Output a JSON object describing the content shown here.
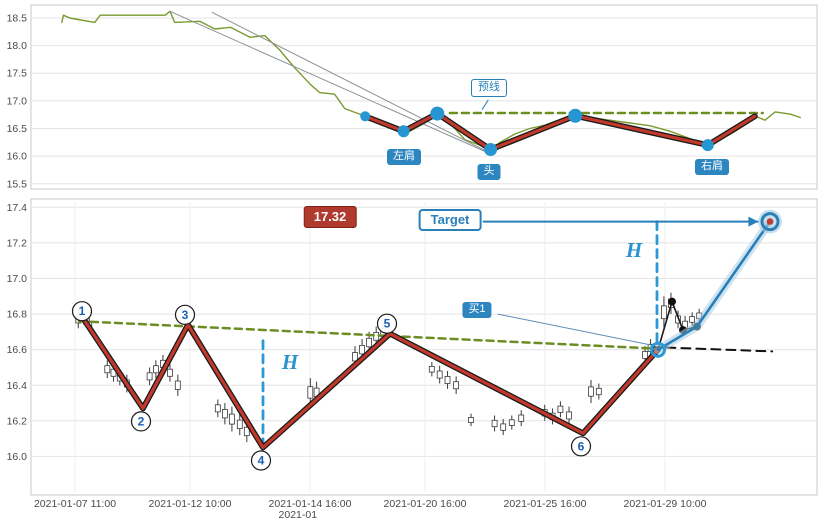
{
  "ui": {
    "badges": {
      "neckline_label": "预线",
      "left_shoulder": "左肩",
      "head": "头",
      "right_shoulder": "右肩",
      "price_target_value": "17.32",
      "target_label": "Target",
      "buy_label": "买1",
      "h_label": "H"
    }
  },
  "chart_data": [
    {
      "type": "line",
      "name": "top-panel-head-and-shoulders-overview",
      "title": "",
      "xlabel": "",
      "ylabel": "",
      "ylim": [
        15.46,
        18.68
      ],
      "yticks": [
        18.5,
        18.0,
        17.5,
        17.0,
        16.5,
        16.0,
        15.5
      ],
      "grid": "horizontal",
      "legend": "none",
      "series": [
        {
          "name": "price",
          "kind": "line",
          "color": "#7a9a2e",
          "width": 1.4,
          "points": [
            [
              0.038,
              18.42
            ],
            [
              0.04,
              18.55
            ],
            [
              0.048,
              18.5
            ],
            [
              0.08,
              18.42
            ],
            [
              0.087,
              18.55
            ],
            [
              0.17,
              18.55
            ],
            [
              0.176,
              18.62
            ],
            [
              0.182,
              18.42
            ],
            [
              0.214,
              18.44
            ],
            [
              0.233,
              18.3
            ],
            [
              0.253,
              18.33
            ],
            [
              0.278,
              18.15
            ],
            [
              0.297,
              18.18
            ],
            [
              0.316,
              17.92
            ],
            [
              0.335,
              17.6
            ],
            [
              0.355,
              17.3
            ],
            [
              0.367,
              17.15
            ],
            [
              0.386,
              17.12
            ],
            [
              0.399,
              16.86
            ],
            [
              0.418,
              16.76
            ],
            [
              0.431,
              16.7
            ],
            [
              0.45,
              16.6
            ],
            [
              0.469,
              16.5
            ],
            [
              0.482,
              16.45
            ],
            [
              0.501,
              16.6
            ],
            [
              0.517,
              16.76
            ],
            [
              0.533,
              16.6
            ],
            [
              0.552,
              16.3
            ],
            [
              0.571,
              16.2
            ],
            [
              0.585,
              16.1
            ],
            [
              0.597,
              16.25
            ],
            [
              0.616,
              16.4
            ],
            [
              0.635,
              16.5
            ],
            [
              0.654,
              16.56
            ],
            [
              0.673,
              16.66
            ],
            [
              0.693,
              16.73
            ],
            [
              0.712,
              16.7
            ],
            [
              0.737,
              16.65
            ],
            [
              0.763,
              16.6
            ],
            [
              0.788,
              16.55
            ],
            [
              0.814,
              16.45
            ],
            [
              0.833,
              16.35
            ],
            [
              0.852,
              16.25
            ],
            [
              0.862,
              16.2
            ],
            [
              0.878,
              16.3
            ],
            [
              0.897,
              16.45
            ],
            [
              0.913,
              16.6
            ],
            [
              0.922,
              16.73
            ],
            [
              0.935,
              16.65
            ],
            [
              0.948,
              16.8
            ],
            [
              0.967,
              16.76
            ],
            [
              0.98,
              16.7
            ]
          ]
        },
        {
          "name": "trendline-upper",
          "kind": "line",
          "color": "#8a9096",
          "width": 1,
          "points": [
            [
              0.176,
              18.62
            ],
            [
              0.588,
              16.02
            ]
          ]
        },
        {
          "name": "trendline-lower",
          "kind": "line",
          "color": "#8a9096",
          "width": 1,
          "points": [
            [
              0.23,
              18.6
            ],
            [
              0.578,
              16.1
            ]
          ]
        },
        {
          "name": "neckline",
          "kind": "dashed",
          "color": "#6b8e23",
          "width": 2.5,
          "dash": "7 5",
          "points": [
            [
              0.533,
              16.78
            ],
            [
              0.932,
              16.78
            ]
          ]
        },
        {
          "name": "head-shoulders-pattern",
          "kind": "pattern",
          "color": "#c0392b",
          "outline": "#1a1a1a",
          "width": 3.2,
          "points": [
            [
              0.425,
              16.72
            ],
            [
              0.474,
              16.45
            ],
            [
              0.517,
              16.77
            ],
            [
              0.585,
              16.12
            ],
            [
              0.693,
              16.73
            ],
            [
              0.862,
              16.2
            ],
            [
              0.922,
              16.72
            ]
          ]
        }
      ],
      "markers": [
        {
          "type": "dot",
          "f": 0.425,
          "v": 16.72,
          "r": 5,
          "color": "#2596d1"
        },
        {
          "type": "dot",
          "f": 0.474,
          "v": 16.45,
          "r": 6,
          "color": "#2596d1"
        },
        {
          "type": "dot",
          "f": 0.517,
          "v": 16.77,
          "r": 7,
          "color": "#2596d1"
        },
        {
          "type": "dot",
          "f": 0.585,
          "v": 16.12,
          "r": 6.5,
          "color": "#2596d1"
        },
        {
          "type": "dot",
          "f": 0.693,
          "v": 16.73,
          "r": 7,
          "color": "#2596d1"
        },
        {
          "type": "dot",
          "f": 0.862,
          "v": 16.2,
          "r": 6,
          "color": "#2596d1"
        }
      ],
      "connectors": [
        {
          "name": "neckline-pointer",
          "from": [
            0.582,
            17.02
          ],
          "to": [
            0.574,
            16.84
          ],
          "color": "#2980b9",
          "width": 1
        }
      ]
    },
    {
      "type": "line",
      "name": "bottom-panel-pattern-target",
      "title": "",
      "xlabel": "",
      "ylabel": "",
      "ylim": [
        15.8,
        17.43
      ],
      "yticks": [
        17.4,
        17.2,
        17.0,
        16.8,
        16.6,
        16.4,
        16.2,
        16.0
      ],
      "grid": "both",
      "legend": "none",
      "target_price": 17.32,
      "xticks": [
        {
          "f": 0.0548,
          "label": "2021-01-07 11:00"
        },
        {
          "f": 0.2015,
          "label": "2021-01-12 10:00"
        },
        {
          "f": 0.3546,
          "label": "2021-01-14 16:00"
        },
        {
          "f": 0.5013,
          "label": "2021-01-20 16:00"
        },
        {
          "f": 0.6543,
          "label": "2021-01-25 16:00"
        },
        {
          "f": 0.8074,
          "label": "2021-01-29 10:00"
        }
      ],
      "extra_tick": {
        "f": 0.339,
        "label": "2021-01"
      },
      "candles": [
        [
          0.059,
          16.82,
          16.72
        ],
        [
          0.066,
          16.8,
          16.74
        ],
        [
          0.073,
          16.78,
          16.7
        ],
        [
          0.096,
          16.54,
          16.44
        ],
        [
          0.104,
          16.52,
          16.42
        ],
        [
          0.112,
          16.48,
          16.4
        ],
        [
          0.121,
          16.46,
          16.36
        ],
        [
          0.15,
          16.5,
          16.4
        ],
        [
          0.158,
          16.54,
          16.44
        ],
        [
          0.167,
          16.57,
          16.47
        ],
        [
          0.176,
          16.52,
          16.42
        ],
        [
          0.186,
          16.46,
          16.34
        ],
        [
          0.237,
          16.32,
          16.22
        ],
        [
          0.246,
          16.3,
          16.18
        ],
        [
          0.255,
          16.28,
          16.14
        ],
        [
          0.265,
          16.24,
          16.12
        ],
        [
          0.274,
          16.2,
          16.08
        ],
        [
          0.355,
          16.44,
          16.28
        ],
        [
          0.363,
          16.42,
          16.3
        ],
        [
          0.412,
          16.62,
          16.5
        ],
        [
          0.421,
          16.66,
          16.54
        ],
        [
          0.43,
          16.7,
          16.58
        ],
        [
          0.439,
          16.73,
          16.62
        ],
        [
          0.448,
          16.75,
          16.64
        ],
        [
          0.51,
          16.53,
          16.45
        ],
        [
          0.52,
          16.51,
          16.41
        ],
        [
          0.53,
          16.48,
          16.38
        ],
        [
          0.541,
          16.45,
          16.35
        ],
        [
          0.56,
          16.24,
          16.17
        ],
        [
          0.59,
          16.23,
          16.14
        ],
        [
          0.601,
          16.21,
          16.12
        ],
        [
          0.612,
          16.23,
          16.15
        ],
        [
          0.624,
          16.26,
          16.17
        ],
        [
          0.654,
          16.29,
          16.2
        ],
        [
          0.664,
          16.27,
          16.18
        ],
        [
          0.674,
          16.31,
          16.22
        ],
        [
          0.685,
          16.28,
          16.18
        ],
        [
          0.713,
          16.43,
          16.3
        ],
        [
          0.723,
          16.41,
          16.32
        ],
        [
          0.782,
          16.62,
          16.52
        ],
        [
          0.789,
          16.66,
          16.56
        ],
        [
          0.806,
          16.9,
          16.72
        ],
        [
          0.815,
          16.92,
          16.8
        ],
        [
          0.824,
          16.82,
          16.72
        ],
        [
          0.833,
          16.79,
          16.69
        ],
        [
          0.842,
          16.81,
          16.73
        ],
        [
          0.851,
          16.83,
          16.75
        ]
      ],
      "series": [
        {
          "name": "neckline-extended",
          "kind": "dashed",
          "color": "#6b8e23",
          "width": 2.5,
          "dash": "7 5",
          "points": [
            [
              0.06,
              16.76
            ],
            [
              0.801,
              16.605
            ]
          ]
        },
        {
          "name": "flat-dashed-black",
          "kind": "dashed",
          "color": "#111111",
          "width": 2,
          "dash": "9 6",
          "points": [
            [
              0.79,
              16.615
            ],
            [
              0.944,
              16.59
            ]
          ]
        },
        {
          "name": "h-measure-left",
          "kind": "dashed",
          "color": "#2b99d6",
          "width": 2.8,
          "dash": "8 6",
          "points": [
            [
              0.2946,
              16.65
            ],
            [
              0.2946,
              16.06
            ]
          ]
        },
        {
          "name": "h-measure-right",
          "kind": "dashed",
          "color": "#2b99d6",
          "width": 2.8,
          "dash": "8 6",
          "points": [
            [
              0.7972,
              17.32
            ],
            [
              0.7972,
              16.64
            ]
          ]
        },
        {
          "name": "zigzag-pattern",
          "kind": "pattern",
          "color": "#c0392b",
          "outline": "#1a1a1a",
          "width": 3.2,
          "points": [
            [
              0.0676,
              16.76
            ],
            [
              0.1416,
              16.27
            ],
            [
              0.199,
              16.74
            ],
            [
              0.2946,
              16.05
            ],
            [
              0.4566,
              16.69
            ],
            [
              0.7028,
              16.13
            ],
            [
              0.7985,
              16.6
            ]
          ]
        },
        {
          "name": "pullback-black",
          "kind": "line",
          "color": "#1a1a1a",
          "width": 1.6,
          "dots": [
            1,
            2,
            3
          ],
          "dot_r": 4,
          "dot_color": "#111111",
          "points": [
            [
              0.7985,
              16.6
            ],
            [
              0.8163,
              16.87
            ],
            [
              0.8303,
              16.71
            ],
            [
              0.8482,
              16.73
            ]
          ]
        },
        {
          "name": "breakout-to-target",
          "kind": "line",
          "color": "#2980b9",
          "width": 2.6,
          "glow": "#a9cce3",
          "points": [
            [
              0.7985,
              16.6
            ],
            [
              0.8482,
              16.73
            ],
            [
              0.9413,
              17.32
            ]
          ]
        }
      ],
      "markers": [
        {
          "type": "ring",
          "f": 0.7985,
          "v": 16.6,
          "r": 6.5,
          "color": "#2b99d6"
        },
        {
          "type": "target",
          "f": 0.9413,
          "v": 17.32,
          "r": 8
        }
      ],
      "point_labels": [
        {
          "text": "1",
          "f": 0.0676,
          "v": 16.76,
          "dir": "up"
        },
        {
          "text": "2",
          "f": 0.1416,
          "v": 16.27,
          "dir": "down"
        },
        {
          "text": "3",
          "f": 0.199,
          "v": 16.74,
          "dir": "up"
        },
        {
          "text": "4",
          "f": 0.2946,
          "v": 16.05,
          "dir": "down"
        },
        {
          "text": "5",
          "f": 0.4566,
          "v": 16.69,
          "dir": "up"
        },
        {
          "text": "6",
          "f": 0.7028,
          "v": 16.13,
          "dir": "down"
        }
      ],
      "connectors": [
        {
          "name": "target-arrow",
          "from": [
            0.575,
            17.32
          ],
          "to": [
            0.9265,
            17.32
          ],
          "color": "#2980b9",
          "width": 2,
          "arrow": true
        },
        {
          "name": "buy-pointer",
          "from": [
            0.594,
            16.8
          ],
          "to": [
            0.791,
            16.625
          ],
          "color": "#5c8cb8",
          "width": 1
        }
      ]
    }
  ]
}
